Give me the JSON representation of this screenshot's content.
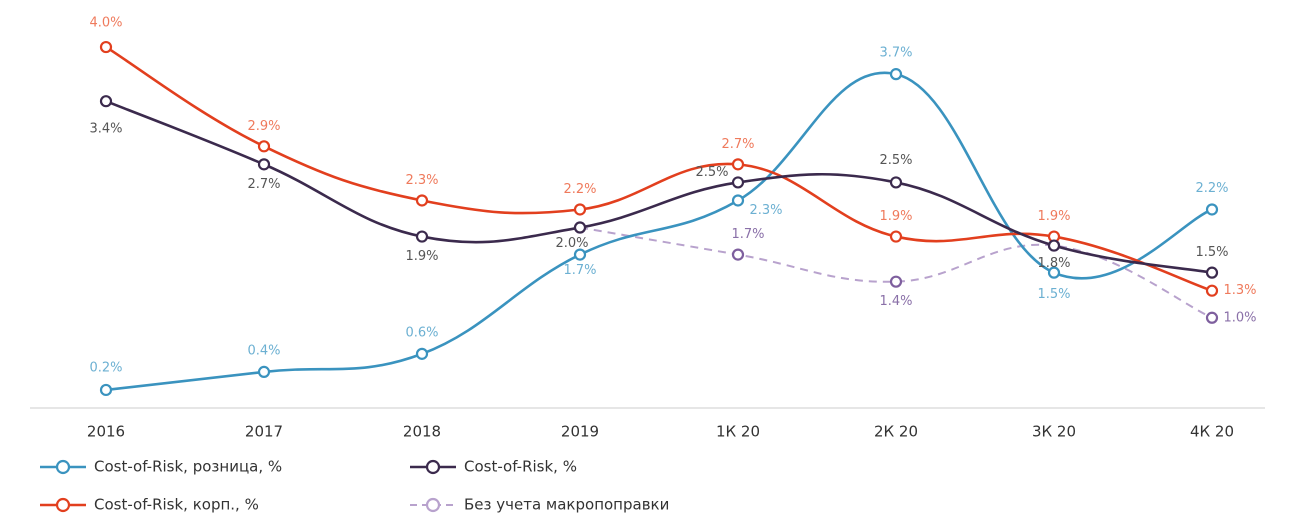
{
  "chart_data": {
    "type": "line",
    "categories": [
      "2016",
      "2017",
      "2018",
      "2019",
      "1К 20",
      "2К 20",
      "3К 20",
      "4К 20"
    ],
    "ylim": [
      0,
      4.3
    ],
    "series": [
      {
        "name": "Cost-of-Risk, розница, %",
        "color": "#3a93bf",
        "label_color": "#6cb0d2",
        "dashed": false,
        "values": [
          0.2,
          0.4,
          0.6,
          1.7,
          2.3,
          3.7,
          1.5,
          2.2
        ],
        "value_labels": [
          "0.2%",
          "0.4%",
          "0.6%",
          "1.7%",
          "2.3%",
          "3.7%",
          "1.5%",
          "2.2%"
        ]
      },
      {
        "name": "Cost-of-Risk, корп., %",
        "color": "#e23f1e",
        "label_color": "#ef7a5c",
        "dashed": false,
        "values": [
          4.0,
          2.9,
          2.3,
          2.2,
          2.7,
          1.9,
          1.9,
          1.3
        ],
        "value_labels": [
          "4.0%",
          "2.9%",
          "2.3%",
          "2.2%",
          "2.7%",
          "1.9%",
          "1.9%",
          "1.3%"
        ]
      },
      {
        "name": "Cost-of-Risk, %",
        "color": "#3b2a4d",
        "label_color": "#555555",
        "dashed": false,
        "values": [
          3.4,
          2.7,
          1.9,
          2.0,
          2.5,
          2.5,
          1.8,
          1.5
        ],
        "value_labels": [
          "3.4%",
          "2.7%",
          "1.9%",
          "2.0%",
          "2.5%",
          "2.5%",
          "1.8%",
          "1.5%"
        ]
      },
      {
        "name": "Без учета макропоправки",
        "color": "#b8a2cd",
        "marker_color": "#7e5f9e",
        "label_color": "#8a70a8",
        "dashed": true,
        "values": [
          null,
          null,
          null,
          2.0,
          1.7,
          1.4,
          1.8,
          1.0
        ],
        "value_labels": [
          null,
          null,
          null,
          null,
          "1.7%",
          "1.4%",
          null,
          "1.0%"
        ]
      }
    ]
  }
}
